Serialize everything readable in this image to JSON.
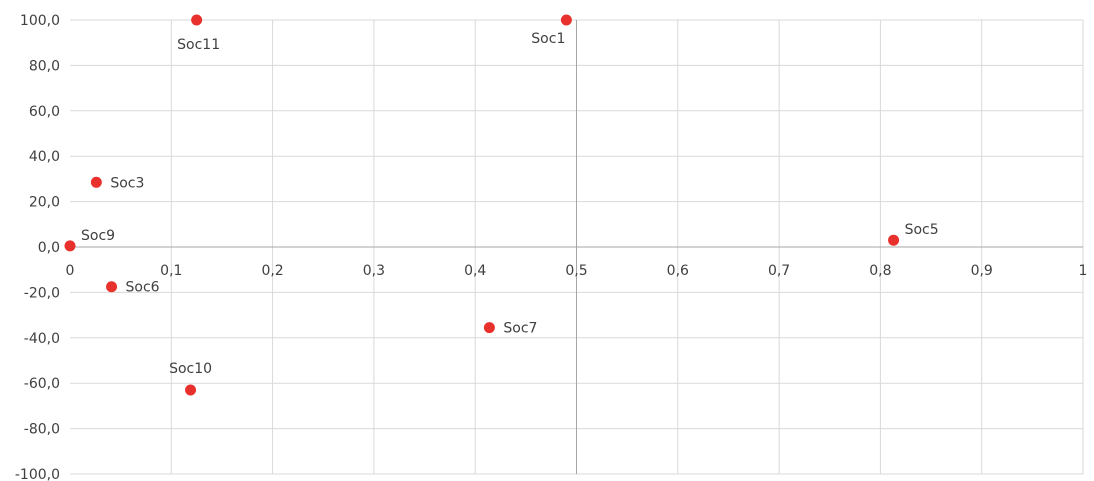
{
  "chart_data": {
    "type": "scatter",
    "xlim": [
      0,
      1
    ],
    "ylim": [
      -100,
      100
    ],
    "x_ticks": [
      "0",
      "0,1",
      "0,2",
      "0,3",
      "0,4",
      "0,5",
      "0,6",
      "0,7",
      "0,8",
      "0,9",
      "1"
    ],
    "y_ticks": [
      "100,0",
      "80,0",
      "60,0",
      "40,0",
      "20,0",
      "0,0",
      "-20,0",
      "-40,0",
      "-60,0",
      "-80,0",
      "-100,0"
    ],
    "grid": true,
    "vertical_reference_line_x": 0.5,
    "marker_color": "#e8312d",
    "grid_color": "#d9d9d9",
    "axis_color": "#a6a6a6",
    "points": [
      {
        "label": "Soc11",
        "x": 0.125,
        "y": 100,
        "label_pos": "below"
      },
      {
        "label": "Soc1",
        "x": 0.49,
        "y": 100,
        "label_pos": "below-left"
      },
      {
        "label": "Soc3",
        "x": 0.026,
        "y": 28.5,
        "label_pos": "right"
      },
      {
        "label": "Soc9",
        "x": 0.0,
        "y": 0.5,
        "label_pos": "above-right"
      },
      {
        "label": "Soc5",
        "x": 0.813,
        "y": 3,
        "label_pos": "above-right"
      },
      {
        "label": "Soc6",
        "x": 0.041,
        "y": -17.5,
        "label_pos": "right"
      },
      {
        "label": "Soc7",
        "x": 0.414,
        "y": -35.5,
        "label_pos": "right"
      },
      {
        "label": "Soc10",
        "x": 0.119,
        "y": -63.0,
        "label_pos": "above"
      }
    ]
  }
}
